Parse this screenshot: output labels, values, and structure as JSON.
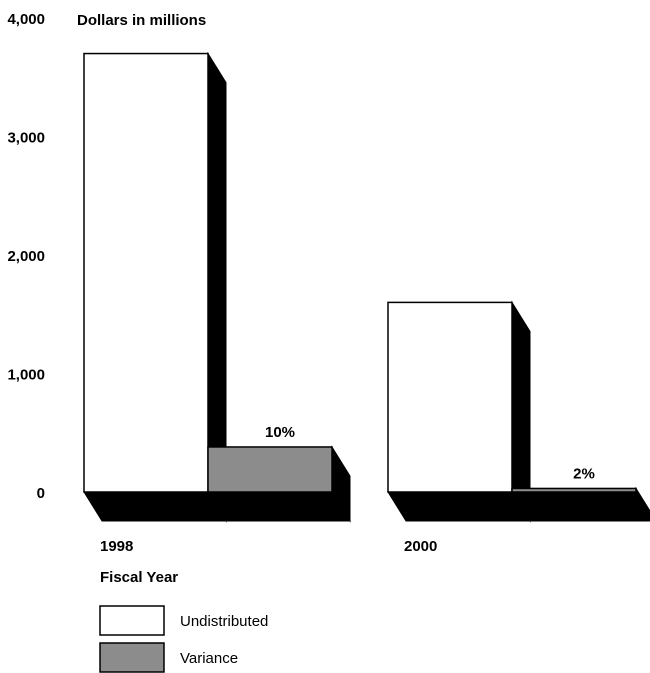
{
  "chart_data": {
    "type": "bar",
    "ylabel": "Dollars in millions",
    "xlabel": "Fiscal Year",
    "ylim": [
      0,
      4000
    ],
    "yticks": [
      "0",
      "1,000",
      "2,000",
      "3,000",
      "4,000"
    ],
    "ytick_values": [
      0,
      1000,
      2000,
      3000,
      4000
    ],
    "categories": [
      "1998",
      "2000"
    ],
    "series": [
      {
        "name": "Undistributed",
        "values": [
          3700,
          1600
        ],
        "color": "#ffffff"
      },
      {
        "name": "Variance",
        "values": [
          380,
          30
        ],
        "color": "#8c8c8c",
        "labels": [
          "10%",
          "2%"
        ]
      }
    ],
    "legend_position": "bottom-left",
    "grid": false,
    "style": "3d"
  }
}
